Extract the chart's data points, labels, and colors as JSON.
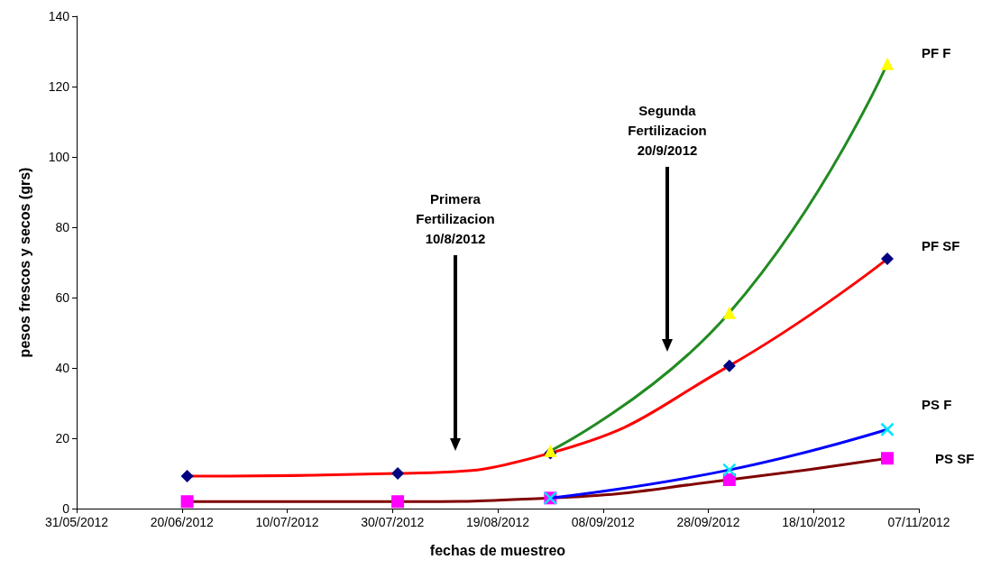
{
  "chart_data": {
    "type": "line",
    "xlabel": "fechas de muestreo",
    "ylabel": "pesos frescos y secos (grs)",
    "xlim": [
      "2012-05-31",
      "2012-11-07"
    ],
    "xticks": [
      {
        "value": "2012-05-31",
        "label": "31/05/2012"
      },
      {
        "value": "2012-06-20",
        "label": "20/06/2012"
      },
      {
        "value": "2012-07-10",
        "label": "10/07/2012"
      },
      {
        "value": "2012-07-30",
        "label": "30/07/2012"
      },
      {
        "value": "2012-08-19",
        "label": "19/08/2012"
      },
      {
        "value": "2012-09-08",
        "label": "08/09/2012"
      },
      {
        "value": "2012-09-28",
        "label": "28/09/2012"
      },
      {
        "value": "2012-10-18",
        "label": "18/10/2012"
      },
      {
        "value": "2012-11-07",
        "label": "07/11/2012"
      }
    ],
    "ylim": [
      0,
      140
    ],
    "yticks": [
      0,
      20,
      40,
      60,
      80,
      100,
      120,
      140
    ],
    "grid": false,
    "line_style": "solid",
    "series": [
      {
        "name": "PF F",
        "color": "#228b22",
        "marker": "triangle",
        "colors": [
          "#ffff00",
          "#ffff00",
          "#ffff00"
        ],
        "x": [
          "2012-08-29",
          "2012-10-02",
          "2012-11-01"
        ],
        "values": [
          16.4,
          55.7,
          126.5
        ]
      },
      {
        "name": "PF SF",
        "color": "#ff0000",
        "marker": "diamond",
        "colors": [
          "#000080",
          "#000080",
          "#000080",
          "#000080",
          "#000080"
        ],
        "x": [
          "2012-06-21",
          "2012-07-31",
          "2012-08-29",
          "2012-10-02",
          "2012-11-01"
        ],
        "values": [
          9.2,
          10,
          15.8,
          40.6,
          71
        ]
      },
      {
        "name": "PS F",
        "color": "#0000ff",
        "marker": "cross",
        "colors": [
          "#00e5ff",
          "#00e5ff",
          "#00e5ff"
        ],
        "x": [
          "2012-08-29",
          "2012-10-02",
          "2012-11-01"
        ],
        "values": [
          3,
          11,
          22.5
        ]
      },
      {
        "name": "PS SF",
        "color": "#800000",
        "marker": "square",
        "colors": [
          "#ff00ff",
          "#ff00ff",
          "#ff00ff",
          "#ff00ff",
          "#ff00ff"
        ],
        "x": [
          "2012-06-21",
          "2012-07-31",
          "2012-08-29",
          "2012-10-02",
          "2012-11-01"
        ],
        "values": [
          2,
          2,
          3,
          8.2,
          14.3
        ]
      }
    ],
    "annotations": [
      "Primera\nFertilizacion\n10/8/2012",
      "Segunda\nFertilizacion\n20/9/2012"
    ]
  }
}
